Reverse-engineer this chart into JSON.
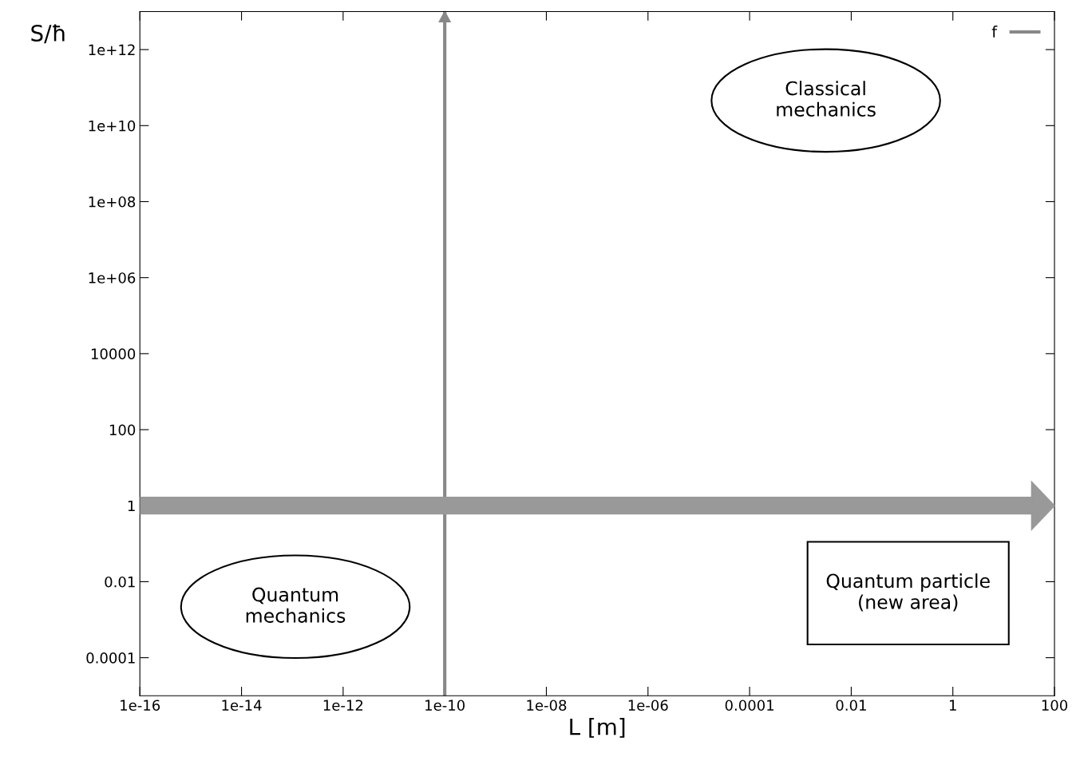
{
  "chart_data": {
    "type": "line",
    "xlabel": "L [m]",
    "ylabel": "S/ħ",
    "log": "xy",
    "xlim": [
      1e-16,
      100
    ],
    "ylim": [
      1e-05,
      10000000000000.0
    ],
    "xticks": [
      {
        "value": 1e-16,
        "label": "1e-16"
      },
      {
        "value": 1e-14,
        "label": "1e-14"
      },
      {
        "value": 1e-12,
        "label": "1e-12"
      },
      {
        "value": 1e-10,
        "label": "1e-10"
      },
      {
        "value": 1e-08,
        "label": "1e-08"
      },
      {
        "value": 1e-06,
        "label": "1e-06"
      },
      {
        "value": 0.0001,
        "label": "0.0001"
      },
      {
        "value": 0.01,
        "label": "0.01"
      },
      {
        "value": 1,
        "label": "1"
      },
      {
        "value": 100,
        "label": "100"
      }
    ],
    "yticks": [
      {
        "value": 0.0001,
        "label": "0.0001"
      },
      {
        "value": 0.01,
        "label": "0.01"
      },
      {
        "value": 1,
        "label": "1"
      },
      {
        "value": 100,
        "label": "100"
      },
      {
        "value": 10000,
        "label": "10000"
      },
      {
        "value": 1000000.0,
        "label": "1e+06"
      },
      {
        "value": 100000000.0,
        "label": "1e+08"
      },
      {
        "value": 10000000000.0,
        "label": "1e+10"
      },
      {
        "value": 1000000000000.0,
        "label": "1e+12"
      }
    ],
    "series": [
      {
        "name": "f",
        "color": "#888888",
        "x": [
          1e-10,
          1e-10
        ],
        "values": [
          1e-05,
          10000000000000.0
        ]
      }
    ],
    "ref_lines": [
      {
        "axis": "y",
        "value": 1,
        "color": "#999999"
      }
    ],
    "annotations": [
      "Classical\nmechanics",
      "Quantum\nmechanics",
      "Quantum particle\n(new area)"
    ],
    "legend": "top right",
    "grid": false,
    "marker": "none",
    "line_style": "solid"
  }
}
